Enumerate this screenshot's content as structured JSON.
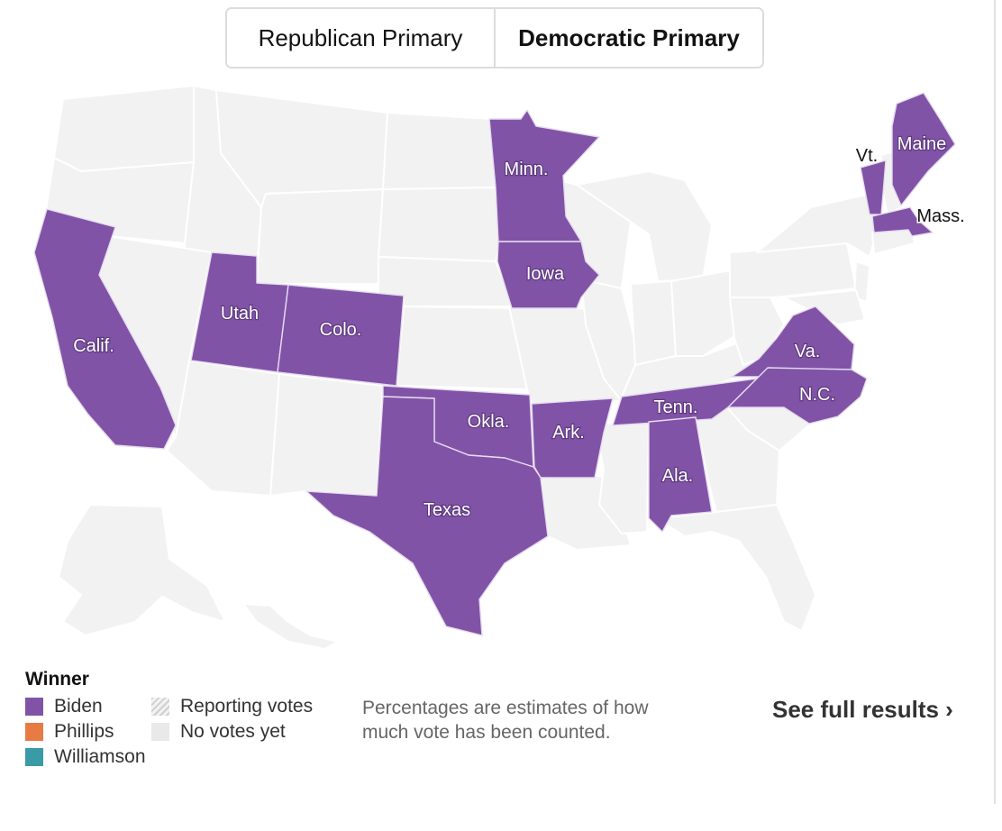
{
  "tabs": [
    {
      "label": "Republican Primary",
      "active": false
    },
    {
      "label": "Democratic Primary",
      "active": true
    }
  ],
  "map": {
    "state_labels": {
      "minn": "Minn.",
      "iowa": "Iowa",
      "utah": "Utah",
      "colo": "Colo.",
      "calif": "Calif.",
      "okla": "Okla.",
      "ark": "Ark.",
      "texas": "Texas",
      "tenn": "Tenn.",
      "ala": "Ala.",
      "va": "Va.",
      "nc": "N.C.",
      "vt": "Vt.",
      "maine": "Maine",
      "mass": "Mass."
    },
    "winners": {
      "minn": "Biden",
      "iowa": "Biden",
      "utah": "Biden",
      "colo": "Biden",
      "calif": "Biden",
      "okla": "Biden",
      "ark": "Biden",
      "texas": "Biden",
      "tenn": "Biden",
      "ala": "Biden",
      "va": "Biden",
      "nc": "Biden",
      "vt": "Biden",
      "maine": "Biden",
      "mass": "Biden"
    }
  },
  "legend": {
    "title": "Winner",
    "candidates": [
      {
        "name": "Biden",
        "color": "#8153a7"
      },
      {
        "name": "Phillips",
        "color": "#e87a44"
      },
      {
        "name": "Williamson",
        "color": "#3a9aa5"
      }
    ],
    "status": [
      {
        "label": "Reporting votes",
        "style": "hatched"
      },
      {
        "label": "No votes yet",
        "style": "gray",
        "color": "#e9e9e9"
      }
    ]
  },
  "note": "Percentages are estimates of how much vote has been counted.",
  "full_results_label": "See full results ›"
}
